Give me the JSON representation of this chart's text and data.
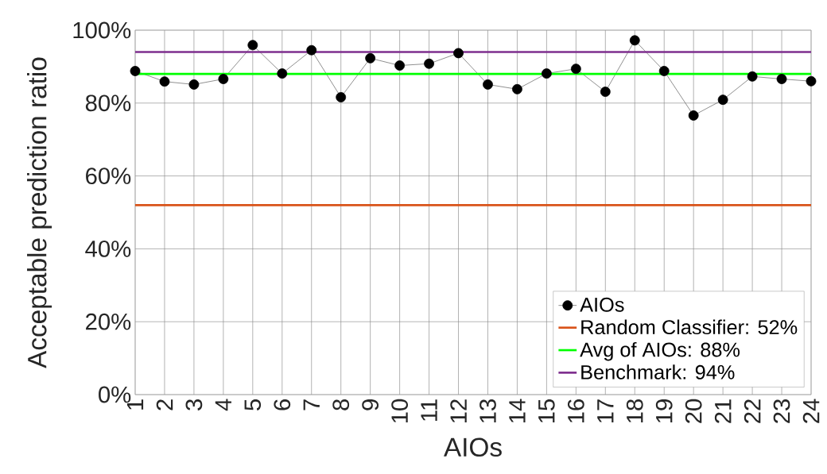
{
  "chart_data": {
    "type": "line",
    "xlabel": "AIOs",
    "ylabel": "Acceptable prediction ratio",
    "x": [
      1,
      2,
      3,
      4,
      5,
      6,
      7,
      8,
      9,
      10,
      11,
      12,
      13,
      14,
      15,
      16,
      17,
      18,
      19,
      20,
      21,
      22,
      23,
      24
    ],
    "series": [
      {
        "name": "AIOs",
        "color": "#000000",
        "values": [
          88.8,
          85.9,
          85.1,
          86.6,
          95.9,
          88.1,
          94.5,
          81.6,
          92.3,
          90.3,
          90.8,
          93.7,
          85.1,
          83.8,
          88.1,
          89.4,
          83.1,
          97.2,
          88.8,
          76.6,
          80.9,
          87.3,
          86.6,
          86.0
        ]
      }
    ],
    "ref_lines": [
      {
        "axis": "y",
        "value": 52,
        "label": "Random Classifier: 52%",
        "color": "#d95319"
      },
      {
        "axis": "y",
        "value": 88,
        "label": "Avg of AIOs: 88%",
        "color": "#00ff00"
      },
      {
        "axis": "y",
        "value": 94,
        "label": "Benchmark: 94%",
        "color": "#7e2f8e"
      }
    ],
    "xlim": [
      1,
      24
    ],
    "xticks": [
      1,
      2,
      3,
      4,
      5,
      6,
      7,
      8,
      9,
      10,
      11,
      12,
      13,
      14,
      15,
      16,
      17,
      18,
      19,
      20,
      21,
      22,
      23,
      24
    ],
    "ylim": [
      0,
      100
    ],
    "yticks": [
      {
        "value": 0,
        "label": "0%"
      },
      {
        "value": 20,
        "label": "20%"
      },
      {
        "value": 40,
        "label": "40%"
      },
      {
        "value": 60,
        "label": "60%"
      },
      {
        "value": 80,
        "label": "80%"
      },
      {
        "value": 100,
        "label": "100%"
      }
    ],
    "grid": true,
    "legend": "bottom right",
    "marker": "circle",
    "line_style": "solid"
  }
}
